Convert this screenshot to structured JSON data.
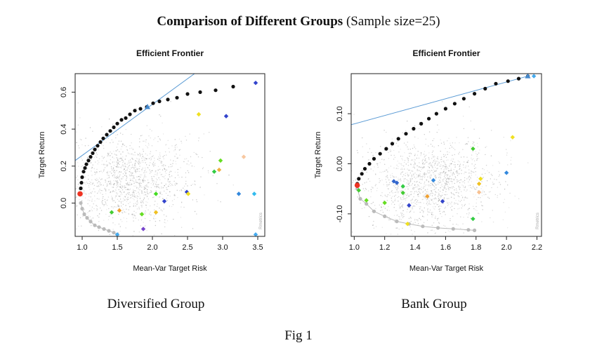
{
  "figure": {
    "title_bold": "Comparison of Different Groups",
    "title_rest": " (Sample size=25)",
    "caption": "Fig 1"
  },
  "chart_data": [
    {
      "type": "scatter",
      "title": "Efficient Frontier",
      "xlabel": "Mean-Var Target Risk",
      "ylabel": "Target Return",
      "xlim": [
        0.9,
        3.6
      ],
      "ylim": [
        -0.18,
        0.7
      ],
      "xticks": [
        "1.0",
        "1.5",
        "2.0",
        "2.5",
        "3.0",
        "3.5"
      ],
      "xtick_values": [
        1.0,
        1.5,
        2.0,
        2.5,
        3.0,
        3.5
      ],
      "yticks": [
        "0.0",
        "0.2",
        "0.4",
        "0.6"
      ],
      "ytick_values": [
        0.0,
        0.2,
        0.4,
        0.6
      ],
      "group_caption": "Diversified Group",
      "watermark": "Rmetrics",
      "cloud_center": [
        1.65,
        0.12
      ],
      "frontier_upper": [
        [
          0.97,
          0.05
        ],
        [
          0.98,
          0.08
        ],
        [
          0.99,
          0.11
        ],
        [
          1.0,
          0.14
        ],
        [
          1.02,
          0.17
        ],
        [
          1.04,
          0.19
        ],
        [
          1.06,
          0.21
        ],
        [
          1.09,
          0.23
        ],
        [
          1.12,
          0.25
        ],
        [
          1.15,
          0.27
        ],
        [
          1.18,
          0.29
        ],
        [
          1.22,
          0.31
        ],
        [
          1.26,
          0.33
        ],
        [
          1.3,
          0.35
        ],
        [
          1.35,
          0.37
        ],
        [
          1.4,
          0.39
        ],
        [
          1.45,
          0.41
        ],
        [
          1.5,
          0.43
        ],
        [
          1.56,
          0.45
        ],
        [
          1.62,
          0.46
        ],
        [
          1.68,
          0.48
        ],
        [
          1.75,
          0.5
        ],
        [
          1.83,
          0.51
        ],
        [
          1.92,
          0.52
        ],
        [
          2.01,
          0.54
        ],
        [
          2.1,
          0.55
        ],
        [
          2.22,
          0.56
        ],
        [
          2.35,
          0.57
        ],
        [
          2.5,
          0.59
        ],
        [
          2.68,
          0.6
        ],
        [
          2.9,
          0.61
        ],
        [
          3.15,
          0.63
        ]
      ],
      "frontier_lower": [
        [
          0.98,
          0.0
        ],
        [
          1.0,
          -0.03
        ],
        [
          1.03,
          -0.06
        ],
        [
          1.07,
          -0.08
        ],
        [
          1.12,
          -0.1
        ],
        [
          1.18,
          -0.12
        ],
        [
          1.24,
          -0.13
        ],
        [
          1.31,
          -0.14
        ],
        [
          1.38,
          -0.15
        ],
        [
          1.45,
          -0.16
        ],
        [
          1.5,
          -0.17
        ]
      ],
      "min_variance_point": [
        0.97,
        0.05
      ],
      "tangency_point": [
        1.93,
        0.52
      ],
      "capital_market_line": [
        [
          0.9,
          0.23
        ],
        [
          2.6,
          0.7
        ]
      ],
      "assets": [
        {
          "x": 1.42,
          "y": -0.05,
          "color": "#44cc33"
        },
        {
          "x": 1.53,
          "y": -0.04,
          "color": "#f0a030"
        },
        {
          "x": 1.85,
          "y": -0.06,
          "color": "#66dd22"
        },
        {
          "x": 2.05,
          "y": -0.05,
          "color": "#f0c020"
        },
        {
          "x": 2.05,
          "y": 0.05,
          "color": "#44dd22"
        },
        {
          "x": 2.17,
          "y": 0.01,
          "color": "#3344cc"
        },
        {
          "x": 2.49,
          "y": 0.06,
          "color": "#3344cc"
        },
        {
          "x": 2.51,
          "y": 0.05,
          "color": "#f0e020"
        },
        {
          "x": 1.87,
          "y": -0.14,
          "color": "#7744cc"
        },
        {
          "x": 1.5,
          "y": -0.17,
          "color": "#44aaee"
        },
        {
          "x": 2.66,
          "y": 0.48,
          "color": "#f0e020"
        },
        {
          "x": 3.05,
          "y": 0.47,
          "color": "#3344cc"
        },
        {
          "x": 2.88,
          "y": 0.17,
          "color": "#33cc44"
        },
        {
          "x": 2.95,
          "y": 0.18,
          "color": "#f0b040"
        },
        {
          "x": 2.97,
          "y": 0.23,
          "color": "#66dd22"
        },
        {
          "x": 3.3,
          "y": 0.25,
          "color": "#f8c8a0"
        },
        {
          "x": 3.23,
          "y": 0.05,
          "color": "#3388dd"
        },
        {
          "x": 3.45,
          "y": 0.05,
          "color": "#33bbee"
        },
        {
          "x": 3.47,
          "y": 0.65,
          "color": "#3344cc"
        },
        {
          "x": 3.47,
          "y": -0.17,
          "color": "#44aaee"
        }
      ]
    },
    {
      "type": "scatter",
      "title": "Efficient Frontier",
      "xlabel": "Mean-Var Target Risk",
      "ylabel": "Target Return",
      "xlim": [
        0.98,
        2.23
      ],
      "ylim": [
        -0.145,
        0.18
      ],
      "xticks": [
        "1.0",
        "1.2",
        "1.4",
        "1.6",
        "1.8",
        "2.0",
        "2.2"
      ],
      "xtick_values": [
        1.0,
        1.2,
        1.4,
        1.6,
        1.8,
        2.0,
        2.2
      ],
      "yticks": [
        "-0.10",
        "0.00",
        "0.10"
      ],
      "ytick_values": [
        -0.1,
        0.0,
        0.1
      ],
      "group_caption": "Bank Group",
      "watermark": "Rmetrics",
      "cloud_center": [
        1.5,
        -0.04
      ],
      "frontier_upper": [
        [
          1.02,
          -0.04
        ],
        [
          1.03,
          -0.03
        ],
        [
          1.05,
          -0.02
        ],
        [
          1.07,
          -0.01
        ],
        [
          1.1,
          0.0
        ],
        [
          1.13,
          0.01
        ],
        [
          1.17,
          0.02
        ],
        [
          1.21,
          0.03
        ],
        [
          1.25,
          0.04
        ],
        [
          1.29,
          0.05
        ],
        [
          1.34,
          0.06
        ],
        [
          1.39,
          0.07
        ],
        [
          1.44,
          0.08
        ],
        [
          1.49,
          0.09
        ],
        [
          1.54,
          0.1
        ],
        [
          1.6,
          0.11
        ],
        [
          1.66,
          0.12
        ],
        [
          1.72,
          0.13
        ],
        [
          1.79,
          0.14
        ],
        [
          1.86,
          0.15
        ],
        [
          1.93,
          0.16
        ],
        [
          2.01,
          0.165
        ],
        [
          2.08,
          0.17
        ],
        [
          2.14,
          0.175
        ]
      ],
      "frontier_lower": [
        [
          1.02,
          -0.05
        ],
        [
          1.04,
          -0.07
        ],
        [
          1.08,
          -0.08
        ],
        [
          1.13,
          -0.095
        ],
        [
          1.2,
          -0.105
        ],
        [
          1.28,
          -0.115
        ],
        [
          1.36,
          -0.12
        ],
        [
          1.45,
          -0.125
        ],
        [
          1.55,
          -0.128
        ],
        [
          1.65,
          -0.13
        ],
        [
          1.75,
          -0.132
        ],
        [
          1.79,
          -0.133
        ]
      ],
      "min_variance_point": [
        1.02,
        -0.043
      ],
      "tangency_point": [
        2.14,
        0.175
      ],
      "capital_market_line": [
        [
          0.98,
          0.078
        ],
        [
          2.14,
          0.175
        ]
      ],
      "assets": [
        {
          "x": 1.03,
          "y": -0.053,
          "color": "#44cc33"
        },
        {
          "x": 1.08,
          "y": -0.073,
          "color": "#66dd22"
        },
        {
          "x": 1.2,
          "y": -0.078,
          "color": "#66dd22"
        },
        {
          "x": 1.26,
          "y": -0.035,
          "color": "#3366cc"
        },
        {
          "x": 1.28,
          "y": -0.038,
          "color": "#3366cc"
        },
        {
          "x": 1.32,
          "y": -0.045,
          "color": "#33cc44"
        },
        {
          "x": 1.32,
          "y": -0.058,
          "color": "#44cc33"
        },
        {
          "x": 1.36,
          "y": -0.083,
          "color": "#3344cc"
        },
        {
          "x": 1.35,
          "y": -0.12,
          "color": "#f0e020"
        },
        {
          "x": 1.52,
          "y": -0.033,
          "color": "#3388dd"
        },
        {
          "x": 1.58,
          "y": -0.075,
          "color": "#3344cc"
        },
        {
          "x": 1.48,
          "y": -0.065,
          "color": "#f0a030"
        },
        {
          "x": 1.78,
          "y": 0.03,
          "color": "#44cc33"
        },
        {
          "x": 1.78,
          "y": -0.11,
          "color": "#33cc44"
        },
        {
          "x": 1.82,
          "y": -0.04,
          "color": "#f0c020"
        },
        {
          "x": 1.83,
          "y": -0.03,
          "color": "#f0e020"
        },
        {
          "x": 1.82,
          "y": -0.057,
          "color": "#f8c090"
        },
        {
          "x": 2.0,
          "y": -0.018,
          "color": "#3388dd"
        },
        {
          "x": 2.04,
          "y": 0.053,
          "color": "#f0e020"
        },
        {
          "x": 2.18,
          "y": 0.175,
          "color": "#44aaee"
        }
      ]
    }
  ],
  "groups": [
    {
      "caption": "Diversified Group"
    },
    {
      "caption": "Bank Group"
    }
  ]
}
